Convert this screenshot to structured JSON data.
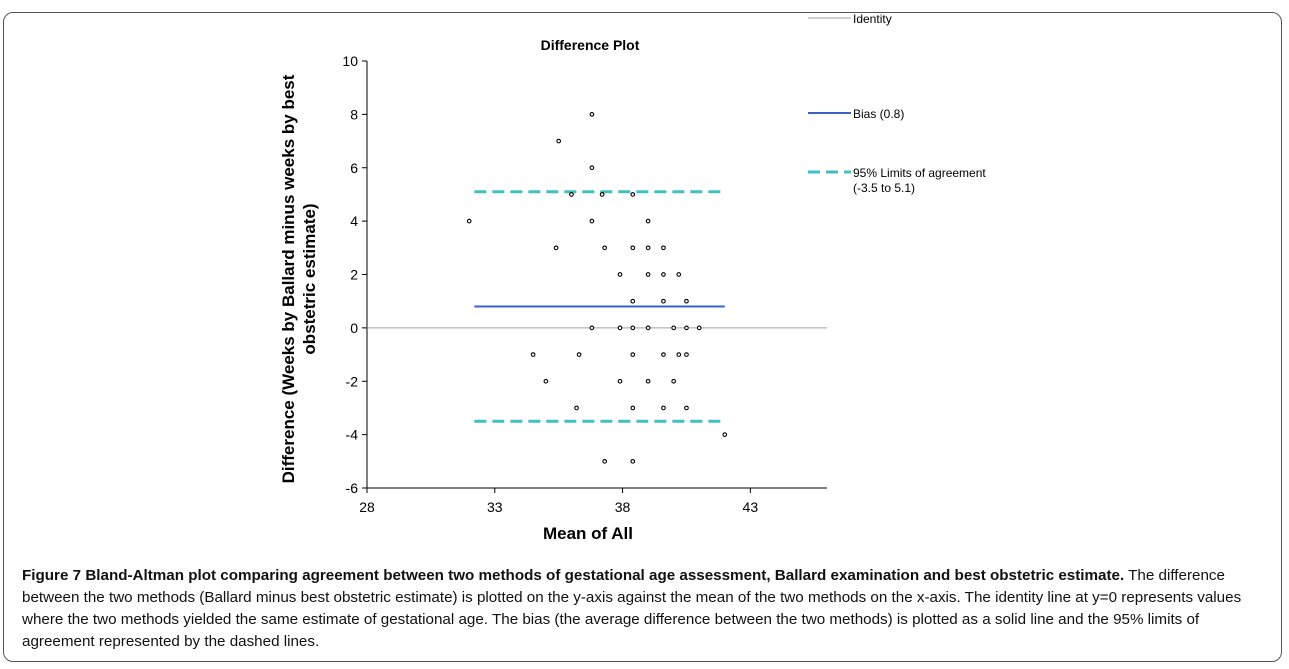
{
  "chart_data": {
    "type": "scatter",
    "title": "Difference Plot",
    "xlabel": "Mean of All",
    "ylabel_line1": "Difference (Weeks by Ballard minus weeks by best",
    "ylabel_line2": "obstetric estimate)",
    "xlim": [
      28,
      46
    ],
    "ylim": [
      -6,
      10
    ],
    "x_ticks": [
      "28",
      "33",
      "38",
      "43"
    ],
    "y_ticks": [
      "-6",
      "-4",
      "-2",
      "0",
      "2",
      "4",
      "6",
      "8",
      "10"
    ],
    "grid": false,
    "legend_position": "right",
    "legend": [
      {
        "label": "Identity"
      },
      {
        "label": "Bias (0.8)"
      },
      {
        "label": "95% Limits of agreement",
        "label2": "(-3.5 to 5.1)"
      }
    ],
    "identity": {
      "y": 0,
      "x_range": [
        28,
        46
      ],
      "color": "#a0a0a0"
    },
    "bias": {
      "value": 0.8,
      "x_range": [
        32.2,
        42
      ],
      "color": "#3a62c8"
    },
    "limits_of_agreement": {
      "lower": -3.5,
      "upper": 5.1,
      "x_range": [
        32.2,
        42
      ],
      "color": "#3ec1c3"
    },
    "points": [
      [
        32,
        4
      ],
      [
        35.5,
        7
      ],
      [
        36.8,
        8
      ],
      [
        36.8,
        6
      ],
      [
        36,
        5
      ],
      [
        37.2,
        5
      ],
      [
        38.4,
        5
      ],
      [
        36.8,
        4
      ],
      [
        39,
        4
      ],
      [
        35.4,
        3
      ],
      [
        37.3,
        3
      ],
      [
        38.4,
        3
      ],
      [
        39,
        3
      ],
      [
        39.6,
        3
      ],
      [
        37.9,
        2
      ],
      [
        39,
        2
      ],
      [
        39.6,
        2
      ],
      [
        40.2,
        2
      ],
      [
        38.4,
        1
      ],
      [
        39.6,
        1
      ],
      [
        40.5,
        1
      ],
      [
        36.8,
        0
      ],
      [
        37.9,
        0
      ],
      [
        38.4,
        0
      ],
      [
        39,
        0
      ],
      [
        40,
        0
      ],
      [
        40.5,
        0
      ],
      [
        41,
        0
      ],
      [
        34.5,
        -1
      ],
      [
        36.3,
        -1
      ],
      [
        38.4,
        -1
      ],
      [
        39.6,
        -1
      ],
      [
        40.2,
        -1
      ],
      [
        40.5,
        -1
      ],
      [
        35,
        -2
      ],
      [
        37.9,
        -2
      ],
      [
        39,
        -2
      ],
      [
        40,
        -2
      ],
      [
        36.2,
        -3
      ],
      [
        38.4,
        -3
      ],
      [
        39.6,
        -3
      ],
      [
        40.5,
        -3
      ],
      [
        42,
        -4
      ],
      [
        37.3,
        -5
      ],
      [
        38.4,
        -5
      ]
    ]
  },
  "caption": {
    "label": "Figure 7",
    "title": "Bland-Altman plot comparing agreement between two methods of gestational age assessment, Ballard examination and best obstetric estimate.",
    "body": "The difference between the two methods (Ballard minus best obstetric estimate) is plotted on the y-axis against the mean of the two methods on the x-axis. The identity line at y=0 represents values where the two methods yielded the same estimate of gestational age. The bias (the average difference between the two methods) is plotted as a solid line and the 95% limits of agreement represented by the dashed lines."
  }
}
